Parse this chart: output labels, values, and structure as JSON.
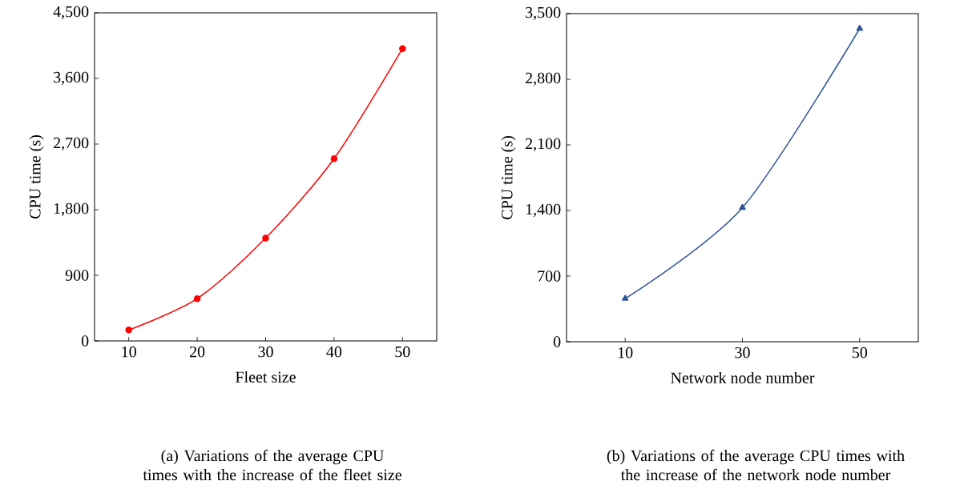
{
  "chart_data": [
    {
      "type": "line",
      "xlabel": "Fleet size",
      "ylabel": "CPU time (s)",
      "x": [
        10,
        20,
        30,
        40,
        50
      ],
      "series": [
        {
          "color": "#ff0000",
          "values": [
            150,
            580,
            1410,
            2500,
            4010
          ]
        }
      ],
      "xlim": [
        5,
        55
      ],
      "xticks": [
        10,
        20,
        30,
        40,
        50
      ],
      "ylim": [
        0,
        4500
      ],
      "yticks": [
        0,
        900,
        {
          "value": 1800,
          "label": "1,800"
        },
        {
          "value": 2700,
          "label": "2,700"
        },
        {
          "value": 3600,
          "label": "3,600"
        },
        {
          "value": 4500,
          "label": "4,500"
        }
      ],
      "marker": "circle",
      "line_style": "solid",
      "grid": false,
      "annotations": [
        "(a) Variations of the average CPU times with the increase of the fleet size"
      ]
    },
    {
      "type": "line",
      "xlabel": "Network node number",
      "ylabel": "CPU time (s)",
      "x": [
        10,
        30,
        50
      ],
      "series": [
        {
          "color": "#2f5597",
          "values": [
            460,
            1430,
            3340
          ]
        }
      ],
      "xlim": [
        0,
        60
      ],
      "xticks": [
        10,
        30,
        50
      ],
      "ylim": [
        0,
        3500
      ],
      "yticks": [
        0,
        700,
        {
          "value": 1400,
          "label": "1,400"
        },
        {
          "value": 2100,
          "label": "2,100"
        },
        {
          "value": 2800,
          "label": "2,800"
        },
        {
          "value": 3500,
          "label": "3,500"
        }
      ],
      "marker": "triangle",
      "line_style": "solid",
      "grid": false,
      "annotations": [
        "(b) Variations of the average CPU times with the increase of the network node number"
      ]
    }
  ]
}
